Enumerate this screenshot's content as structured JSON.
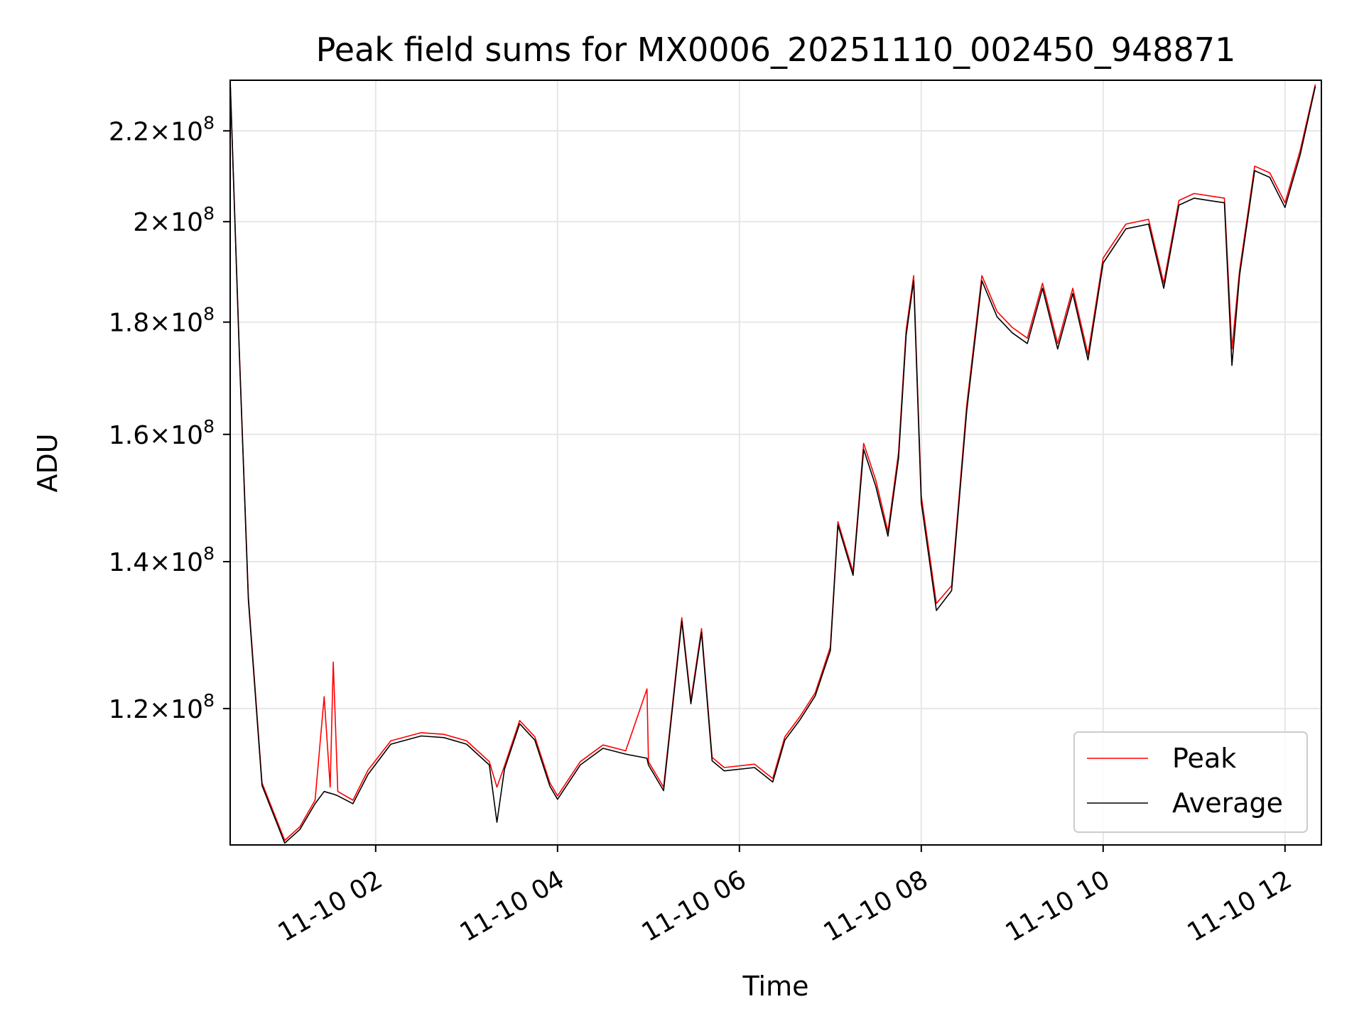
{
  "chart_data": {
    "type": "line",
    "title": "Peak field sums for MX0006_20251110_002450_948871",
    "xlabel": "Time",
    "ylabel": "ADU",
    "x_axis_kind": "datetime",
    "xlim": [
      "2025-11-10 00:24",
      "2025-11-10 12:24"
    ],
    "ylim": [
      104000000,
      232000000
    ],
    "y_scale": "log",
    "grid": true,
    "legend_position": "lower right",
    "x_ticks": [
      {
        "label": "11-10 02",
        "value": "2025-11-10 02:00"
      },
      {
        "label": "11-10 04",
        "value": "2025-11-10 04:00"
      },
      {
        "label": "11-10 06",
        "value": "2025-11-10 06:00"
      },
      {
        "label": "11-10 08",
        "value": "2025-11-10 08:00"
      },
      {
        "label": "11-10 10",
        "value": "2025-11-10 10:00"
      },
      {
        "label": "11-10 12",
        "value": "2025-11-10 12:00"
      }
    ],
    "y_ticks": [
      {
        "mantissa": "1.2",
        "exp": "8",
        "value": 120000000
      },
      {
        "mantissa": "1.4",
        "exp": "8",
        "value": 140000000
      },
      {
        "mantissa": "1.6",
        "exp": "8",
        "value": 160000000
      },
      {
        "mantissa": "1.8",
        "exp": "8",
        "value": 180000000
      },
      {
        "mantissa": "2",
        "exp": "8",
        "value": 200000000
      },
      {
        "mantissa": "2.2",
        "exp": "8",
        "value": 220000000
      }
    ],
    "series": [
      {
        "name": "Peak",
        "color": "#ff0000",
        "points": [
          [
            "2025-11-10 00:24",
            232000000
          ],
          [
            "2025-11-10 00:30",
            175000000
          ],
          [
            "2025-11-10 00:36",
            135000000
          ],
          [
            "2025-11-10 00:45",
            111000000
          ],
          [
            "2025-11-10 01:00",
            104500000
          ],
          [
            "2025-11-10 01:10",
            106000000
          ],
          [
            "2025-11-10 01:20",
            109000000
          ],
          [
            "2025-11-10 01:26",
            121500000
          ],
          [
            "2025-11-10 01:30",
            110500000
          ],
          [
            "2025-11-10 01:32",
            126000000
          ],
          [
            "2025-11-10 01:35",
            110000000
          ],
          [
            "2025-11-10 01:45",
            109000000
          ],
          [
            "2025-11-10 01:55",
            112500000
          ],
          [
            "2025-11-10 02:10",
            116000000
          ],
          [
            "2025-11-10 02:30",
            117000000
          ],
          [
            "2025-11-10 02:45",
            116800000
          ],
          [
            "2025-11-10 03:00",
            116000000
          ],
          [
            "2025-11-10 03:15",
            113500000
          ],
          [
            "2025-11-10 03:20",
            110500000
          ],
          [
            "2025-11-10 03:25",
            113000000
          ],
          [
            "2025-11-10 03:35",
            118500000
          ],
          [
            "2025-11-10 03:45",
            116500000
          ],
          [
            "2025-11-10 03:55",
            111000000
          ],
          [
            "2025-11-10 04:00",
            109500000
          ],
          [
            "2025-11-10 04:15",
            113500000
          ],
          [
            "2025-11-10 04:30",
            115500000
          ],
          [
            "2025-11-10 04:45",
            114800000
          ],
          [
            "2025-11-10 04:59",
            122500000
          ],
          [
            "2025-11-10 05:00",
            113500000
          ],
          [
            "2025-11-10 05:10",
            110500000
          ],
          [
            "2025-11-10 05:15",
            119000000
          ],
          [
            "2025-11-10 05:22",
            132000000
          ],
          [
            "2025-11-10 05:28",
            121000000
          ],
          [
            "2025-11-10 05:35",
            130500000
          ],
          [
            "2025-11-10 05:42",
            114000000
          ],
          [
            "2025-11-10 05:50",
            112800000
          ],
          [
            "2025-11-10 06:10",
            113200000
          ],
          [
            "2025-11-10 06:22",
            111500000
          ],
          [
            "2025-11-10 06:30",
            116500000
          ],
          [
            "2025-11-10 06:40",
            119000000
          ],
          [
            "2025-11-10 06:50",
            122000000
          ],
          [
            "2025-11-10 07:00",
            128000000
          ],
          [
            "2025-11-10 07:05",
            146000000
          ],
          [
            "2025-11-10 07:15",
            138500000
          ],
          [
            "2025-11-10 07:22",
            158500000
          ],
          [
            "2025-11-10 07:30",
            152500000
          ],
          [
            "2025-11-10 07:38",
            144500000
          ],
          [
            "2025-11-10 07:45",
            157000000
          ],
          [
            "2025-11-10 07:50",
            178500000
          ],
          [
            "2025-11-10 07:55",
            189000000
          ],
          [
            "2025-11-10 08:00",
            150000000
          ],
          [
            "2025-11-10 08:10",
            134000000
          ],
          [
            "2025-11-10 08:20",
            136500000
          ],
          [
            "2025-11-10 08:30",
            165000000
          ],
          [
            "2025-11-10 08:40",
            189000000
          ],
          [
            "2025-11-10 08:50",
            182000000
          ],
          [
            "2025-11-10 09:00",
            179000000
          ],
          [
            "2025-11-10 09:10",
            177000000
          ],
          [
            "2025-11-10 09:20",
            187500000
          ],
          [
            "2025-11-10 09:30",
            176000000
          ],
          [
            "2025-11-10 09:40",
            186500000
          ],
          [
            "2025-11-10 09:50",
            174000000
          ],
          [
            "2025-11-10 10:00",
            192500000
          ],
          [
            "2025-11-10 10:15",
            199500000
          ],
          [
            "2025-11-10 10:30",
            200500000
          ],
          [
            "2025-11-10 10:40",
            187500000
          ],
          [
            "2025-11-10 10:50",
            204500000
          ],
          [
            "2025-11-10 11:00",
            206000000
          ],
          [
            "2025-11-10 11:10",
            205500000
          ],
          [
            "2025-11-10 11:20",
            205000000
          ],
          [
            "2025-11-10 11:25",
            175000000
          ],
          [
            "2025-11-10 11:30",
            190000000
          ],
          [
            "2025-11-10 11:40",
            212000000
          ],
          [
            "2025-11-10 11:50",
            210500000
          ],
          [
            "2025-11-10 12:00",
            204000000
          ],
          [
            "2025-11-10 12:10",
            215500000
          ],
          [
            "2025-11-10 12:20",
            231000000
          ]
        ]
      },
      {
        "name": "Average",
        "color": "#000000",
        "points": [
          [
            "2025-11-10 00:24",
            232000000
          ],
          [
            "2025-11-10 00:30",
            174500000
          ],
          [
            "2025-11-10 00:36",
            134500000
          ],
          [
            "2025-11-10 00:45",
            110700000
          ],
          [
            "2025-11-10 01:00",
            104200000
          ],
          [
            "2025-11-10 01:10",
            105700000
          ],
          [
            "2025-11-10 01:20",
            108600000
          ],
          [
            "2025-11-10 01:26",
            110000000
          ],
          [
            "2025-11-10 01:30",
            109800000
          ],
          [
            "2025-11-10 01:32",
            109700000
          ],
          [
            "2025-11-10 01:35",
            109500000
          ],
          [
            "2025-11-10 01:45",
            108600000
          ],
          [
            "2025-11-10 01:55",
            112000000
          ],
          [
            "2025-11-10 02:10",
            115600000
          ],
          [
            "2025-11-10 02:30",
            116600000
          ],
          [
            "2025-11-10 02:45",
            116400000
          ],
          [
            "2025-11-10 03:00",
            115600000
          ],
          [
            "2025-11-10 03:15",
            113100000
          ],
          [
            "2025-11-10 03:20",
            106500000
          ],
          [
            "2025-11-10 03:25",
            112600000
          ],
          [
            "2025-11-10 03:35",
            118100000
          ],
          [
            "2025-11-10 03:45",
            116100000
          ],
          [
            "2025-11-10 03:55",
            110600000
          ],
          [
            "2025-11-10 04:00",
            109100000
          ],
          [
            "2025-11-10 04:15",
            113100000
          ],
          [
            "2025-11-10 04:30",
            115100000
          ],
          [
            "2025-11-10 04:45",
            114400000
          ],
          [
            "2025-11-10 04:59",
            113900000
          ],
          [
            "2025-11-10 05:00",
            113100000
          ],
          [
            "2025-11-10 05:10",
            110100000
          ],
          [
            "2025-11-10 05:15",
            118600000
          ],
          [
            "2025-11-10 05:22",
            131500000
          ],
          [
            "2025-11-10 05:28",
            120600000
          ],
          [
            "2025-11-10 05:35",
            130000000
          ],
          [
            "2025-11-10 05:42",
            113600000
          ],
          [
            "2025-11-10 05:50",
            112400000
          ],
          [
            "2025-11-10 06:10",
            112800000
          ],
          [
            "2025-11-10 06:22",
            111100000
          ],
          [
            "2025-11-10 06:30",
            116100000
          ],
          [
            "2025-11-10 06:40",
            118600000
          ],
          [
            "2025-11-10 06:50",
            121600000
          ],
          [
            "2025-11-10 07:00",
            127500000
          ],
          [
            "2025-11-10 07:05",
            145500000
          ],
          [
            "2025-11-10 07:15",
            138000000
          ],
          [
            "2025-11-10 07:22",
            157500000
          ],
          [
            "2025-11-10 07:30",
            151500000
          ],
          [
            "2025-11-10 07:38",
            143800000
          ],
          [
            "2025-11-10 07:45",
            156000000
          ],
          [
            "2025-11-10 07:50",
            177500000
          ],
          [
            "2025-11-10 07:55",
            188000000
          ],
          [
            "2025-11-10 08:00",
            149000000
          ],
          [
            "2025-11-10 08:10",
            133000000
          ],
          [
            "2025-11-10 08:20",
            135800000
          ],
          [
            "2025-11-10 08:30",
            164000000
          ],
          [
            "2025-11-10 08:40",
            188000000
          ],
          [
            "2025-11-10 08:50",
            181000000
          ],
          [
            "2025-11-10 09:00",
            178000000
          ],
          [
            "2025-11-10 09:10",
            176000000
          ],
          [
            "2025-11-10 09:20",
            186500000
          ],
          [
            "2025-11-10 09:30",
            175000000
          ],
          [
            "2025-11-10 09:40",
            185500000
          ],
          [
            "2025-11-10 09:50",
            173000000
          ],
          [
            "2025-11-10 10:00",
            191500000
          ],
          [
            "2025-11-10 10:15",
            198500000
          ],
          [
            "2025-11-10 10:30",
            199500000
          ],
          [
            "2025-11-10 10:40",
            186500000
          ],
          [
            "2025-11-10 10:50",
            203500000
          ],
          [
            "2025-11-10 11:00",
            205000000
          ],
          [
            "2025-11-10 11:10",
            204500000
          ],
          [
            "2025-11-10 11:20",
            204000000
          ],
          [
            "2025-11-10 11:25",
            172000000
          ],
          [
            "2025-11-10 11:30",
            189000000
          ],
          [
            "2025-11-10 11:40",
            211000000
          ],
          [
            "2025-11-10 11:50",
            209500000
          ],
          [
            "2025-11-10 12:00",
            203000000
          ],
          [
            "2025-11-10 12:10",
            214500000
          ],
          [
            "2025-11-10 12:20",
            230500000
          ]
        ]
      }
    ]
  }
}
